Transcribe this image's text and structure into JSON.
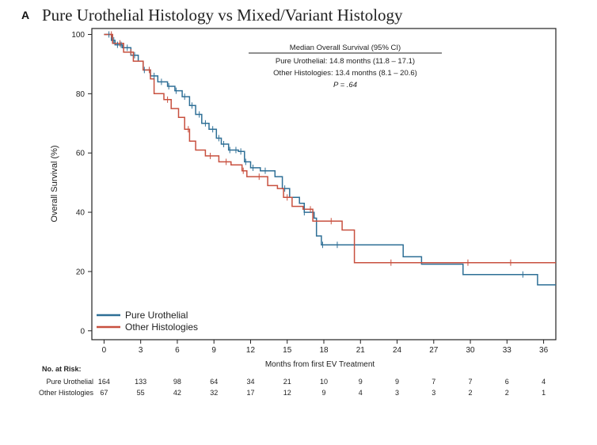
{
  "panel": {
    "letter": "A",
    "title": "Pure Urothelial Histology vs Mixed/Variant Histology"
  },
  "colors": {
    "pure": "#2e6f96",
    "other": "#c8503f",
    "axis": "#222222"
  },
  "annotation": {
    "header": "Median Overall Survival (95% CI)",
    "line1": "Pure Urothelial: 14.8 months (11.8 – 17.1)",
    "line2": "Other Histologies: 13.4 months (8.1 – 20.6)",
    "line3": "P = .64"
  },
  "chart_data": {
    "type": "line",
    "subtype": "kaplan-meier step",
    "title": "Pure Urothelial Histology vs Mixed/Variant Histology",
    "xlabel": "Months from first EV Treatment",
    "ylabel": "Overall Survival (%)",
    "xlim": [
      -1,
      37
    ],
    "ylim": [
      -3,
      102
    ],
    "x_ticks": [
      0,
      3,
      6,
      9,
      12,
      15,
      18,
      21,
      24,
      27,
      30,
      33,
      36
    ],
    "y_ticks": [
      0,
      20,
      40,
      60,
      80,
      100
    ],
    "legend_position": "bottom-left",
    "series": [
      {
        "name": "Pure Urothelial",
        "color": "#2e6f96",
        "points": [
          [
            0,
            100
          ],
          [
            0.6,
            98
          ],
          [
            0.9,
            96.5
          ],
          [
            1.5,
            95.5
          ],
          [
            2.2,
            93
          ],
          [
            2.8,
            91
          ],
          [
            3.2,
            88
          ],
          [
            3.8,
            86
          ],
          [
            4.4,
            84
          ],
          [
            5.2,
            82.5
          ],
          [
            5.8,
            81
          ],
          [
            6.4,
            79
          ],
          [
            7,
            76
          ],
          [
            7.5,
            73
          ],
          [
            8,
            70
          ],
          [
            8.6,
            68
          ],
          [
            9.2,
            65
          ],
          [
            9.6,
            63
          ],
          [
            10.2,
            61
          ],
          [
            11,
            60.5
          ],
          [
            11.5,
            57
          ],
          [
            12,
            55
          ],
          [
            12.8,
            54
          ],
          [
            14,
            52
          ],
          [
            14.6,
            48
          ],
          [
            15.2,
            45
          ],
          [
            16,
            43
          ],
          [
            16.4,
            40
          ],
          [
            17.2,
            38
          ],
          [
            17.4,
            32
          ],
          [
            17.8,
            29
          ],
          [
            20.5,
            29
          ],
          [
            24.5,
            29
          ],
          [
            24.5,
            25
          ],
          [
            26,
            25
          ],
          [
            26,
            22.5
          ],
          [
            29.4,
            22.5
          ],
          [
            29.4,
            19
          ],
          [
            35.5,
            19
          ],
          [
            35.5,
            15.5
          ],
          [
            37,
            15.5
          ]
        ],
        "censor_x": [
          0.4,
          0.8,
          1.1,
          1.4,
          1.9,
          2.5,
          3.3,
          4.1,
          4.7,
          5.3,
          5.9,
          6.6,
          7.2,
          7.8,
          8.3,
          8.9,
          9.4,
          9.8,
          10.3,
          10.8,
          11.2,
          11.6,
          12.2,
          13.2,
          14.8,
          16.4,
          17.9,
          19.1,
          34.3
        ]
      },
      {
        "name": "Other Histologies",
        "color": "#c8503f",
        "points": [
          [
            0,
            100
          ],
          [
            0.7,
            97
          ],
          [
            1.6,
            94
          ],
          [
            2.4,
            91
          ],
          [
            3.2,
            88
          ],
          [
            3.8,
            85
          ],
          [
            4.1,
            80
          ],
          [
            4.9,
            78
          ],
          [
            5.5,
            75
          ],
          [
            6.1,
            72
          ],
          [
            6.6,
            68
          ],
          [
            7,
            64
          ],
          [
            7.5,
            61
          ],
          [
            8.3,
            59
          ],
          [
            9.4,
            57
          ],
          [
            10.4,
            56
          ],
          [
            11.3,
            54
          ],
          [
            11.7,
            52
          ],
          [
            13.1,
            52
          ],
          [
            13.4,
            49
          ],
          [
            14.2,
            48
          ],
          [
            14.7,
            45
          ],
          [
            15.4,
            42
          ],
          [
            16.3,
            41
          ],
          [
            17.1,
            37
          ],
          [
            19.5,
            37
          ],
          [
            19.5,
            34
          ],
          [
            20.5,
            34
          ],
          [
            20.5,
            23
          ],
          [
            37,
            23
          ]
        ],
        "censor_x": [
          0.6,
          1.3,
          2.2,
          3.7,
          5.2,
          6.9,
          8.7,
          10,
          11.4,
          12.7,
          15,
          16.9,
          18.6,
          23.5,
          29.8,
          33.3
        ]
      }
    ]
  },
  "risk_table": {
    "heading": "No. at Risk:",
    "times": [
      "0",
      "3",
      "6",
      "9",
      "12",
      "15",
      "18",
      "21",
      "24",
      "27",
      "30",
      "33",
      "36"
    ],
    "rows": [
      {
        "label": "Pure Urothelial",
        "values": [
          "164",
          "133",
          "98",
          "64",
          "34",
          "21",
          "10",
          "9",
          "9",
          "7",
          "7",
          "6",
          "4"
        ]
      },
      {
        "label": "Other Histologies",
        "values": [
          "67",
          "55",
          "42",
          "32",
          "17",
          "12",
          "9",
          "4",
          "3",
          "3",
          "2",
          "2",
          "1"
        ]
      }
    ]
  }
}
